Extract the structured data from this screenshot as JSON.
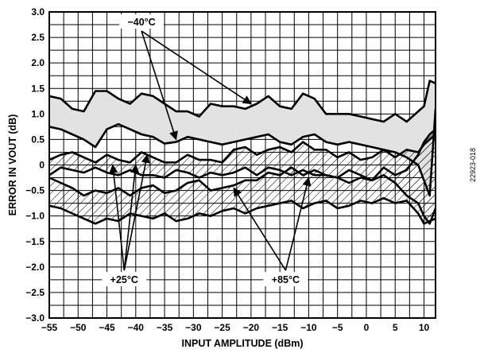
{
  "chart_data": {
    "type": "line",
    "title": "",
    "xlabel": "INPUT AMPLITUDE (dBm)",
    "ylabel": "ERROR IN VOUT (dB)",
    "xlim": [
      -55,
      12
    ],
    "ylim": [
      -3.0,
      3.0
    ],
    "grid": true,
    "x_ticks": [
      -55,
      -50,
      -45,
      -40,
      -35,
      -30,
      -25,
      -20,
      -15,
      -10,
      -5,
      0,
      5,
      10
    ],
    "x_tick_labels": [
      "−55",
      "−50",
      "−45",
      "−40",
      "−35",
      "−30",
      "−25",
      "−20",
      "−15",
      "−10",
      "−5",
      "0",
      "5",
      "10"
    ],
    "y_ticks": [
      3.0,
      2.5,
      2.0,
      1.5,
      1.0,
      0.5,
      0,
      -0.5,
      -1.0,
      -1.5,
      -2.0,
      -2.5,
      -3.0
    ],
    "y_tick_labels": [
      "3.0",
      "2.5",
      "2.0",
      "1.5",
      "1.0",
      "0.5",
      "0",
      "−0.5",
      "−1.0",
      "−1.5",
      "−2.0",
      "−2.5",
      "−3.0"
    ],
    "bands": [
      {
        "label": "−40°C",
        "fill": "shaded",
        "x": [
          -55,
          -53,
          -51,
          -49,
          -47,
          -45,
          -43,
          -41,
          -39,
          -37,
          -35,
          -33,
          -31,
          -29,
          -27,
          -25,
          -23,
          -21,
          -19,
          -17,
          -15,
          -13,
          -11,
          -9,
          -7,
          -5,
          -3,
          -1,
          1,
          3,
          5,
          7,
          9,
          10,
          11,
          12
        ],
        "upper": [
          1.35,
          1.3,
          1.1,
          1.05,
          1.45,
          1.45,
          1.3,
          1.2,
          1.4,
          1.35,
          1.2,
          1.05,
          1.05,
          0.95,
          1.2,
          1.15,
          1.15,
          1.1,
          1.2,
          1.35,
          1.15,
          1.1,
          1.4,
          1.3,
          1.0,
          1.0,
          1.0,
          0.95,
          0.9,
          0.85,
          1.0,
          0.85,
          1.05,
          1.15,
          1.65,
          1.6
        ],
        "lower": [
          0.75,
          0.7,
          0.6,
          0.5,
          0.35,
          0.7,
          0.8,
          0.7,
          0.6,
          0.55,
          0.42,
          0.45,
          0.55,
          0.5,
          0.45,
          0.4,
          0.45,
          0.5,
          0.55,
          0.6,
          0.45,
          0.4,
          0.55,
          0.6,
          0.45,
          0.4,
          0.45,
          0.4,
          0.35,
          0.3,
          0.25,
          0.15,
          0.0,
          -0.3,
          -0.6,
          1.1
        ]
      },
      {
        "label": "+25°C",
        "fill": "hatched",
        "x": [
          -55,
          -53,
          -51,
          -49,
          -47,
          -45,
          -43,
          -41,
          -39,
          -37,
          -35,
          -33,
          -31,
          -29,
          -27,
          -25,
          -23,
          -21,
          -19,
          -17,
          -15,
          -13,
          -11,
          -9,
          -7,
          -5,
          -3,
          -1,
          1,
          3,
          5,
          7,
          9,
          10,
          11,
          12
        ],
        "upper": [
          0.1,
          0.2,
          0.25,
          0.15,
          0.05,
          0.2,
          0.1,
          0.05,
          0.25,
          0.15,
          0.05,
          0.05,
          0.2,
          0.1,
          0.1,
          0.05,
          0.3,
          0.35,
          0.2,
          0.3,
          0.35,
          0.25,
          0.45,
          0.3,
          0.3,
          0.15,
          0.25,
          0.1,
          0.15,
          0.3,
          0.15,
          0.3,
          0.25,
          0.4,
          0.5,
          0.6
        ],
        "lower": [
          -0.2,
          -0.05,
          -0.1,
          -0.15,
          -0.05,
          -0.15,
          -0.2,
          -0.1,
          -0.2,
          -0.2,
          -0.25,
          -0.1,
          -0.15,
          -0.25,
          -0.15,
          -0.2,
          -0.15,
          -0.05,
          -0.2,
          -0.05,
          -0.1,
          -0.2,
          -0.1,
          -0.2,
          -0.2,
          -0.25,
          -0.1,
          -0.2,
          -0.3,
          -0.2,
          -0.35,
          -0.6,
          -0.75,
          -1.0,
          -1.15,
          -0.85
        ]
      },
      {
        "label": "+85°C",
        "fill": "hatched",
        "x": [
          -55,
          -53,
          -51,
          -49,
          -47,
          -45,
          -43,
          -41,
          -39,
          -37,
          -35,
          -33,
          -31,
          -29,
          -27,
          -25,
          -23,
          -21,
          -19,
          -17,
          -15,
          -13,
          -11,
          -9,
          -7,
          -5,
          -3,
          -1,
          1,
          3,
          5,
          7,
          9,
          10,
          11,
          12
        ],
        "upper": [
          -0.25,
          -0.35,
          -0.45,
          -0.6,
          -0.5,
          -0.55,
          -0.45,
          -0.6,
          -0.45,
          -0.4,
          -0.55,
          -0.5,
          -0.35,
          -0.3,
          -0.5,
          -0.45,
          -0.4,
          -0.3,
          -0.3,
          -0.15,
          -0.2,
          -0.05,
          -0.2,
          -0.1,
          -0.2,
          -0.25,
          -0.35,
          -0.25,
          -0.3,
          -0.05,
          -0.2,
          -0.1,
          0.2,
          0.45,
          0.6,
          0.7
        ],
        "lower": [
          -0.8,
          -0.85,
          -0.95,
          -1.05,
          -1.15,
          -1.05,
          -1.1,
          -0.95,
          -1.0,
          -1.05,
          -0.95,
          -1.1,
          -1.05,
          -0.95,
          -1.0,
          -0.9,
          -0.85,
          -0.95,
          -0.85,
          -0.8,
          -0.75,
          -0.7,
          -0.85,
          -0.75,
          -0.7,
          -0.85,
          -0.8,
          -0.7,
          -0.75,
          -0.65,
          -0.75,
          -0.7,
          -0.95,
          -1.15,
          -1.1,
          -1.05
        ]
      }
    ],
    "annotations": [
      {
        "text": "−40°C",
        "arrows_to": [
          [
            -33,
            0.5
          ],
          [
            -20,
            1.2
          ]
        ]
      },
      {
        "text": "+25°C",
        "arrows_to": [
          [
            -44,
            0.0
          ],
          [
            -40,
            0.0
          ],
          [
            -38,
            0.2
          ]
        ]
      },
      {
        "text": "+85°C",
        "arrows_to": [
          [
            -23,
            -0.45
          ],
          [
            -10,
            -0.25
          ]
        ]
      }
    ],
    "colors": {
      "shade": "#e2e2e2",
      "line": "#000000",
      "grid": "#000000"
    }
  },
  "figure_id": "22923-018"
}
